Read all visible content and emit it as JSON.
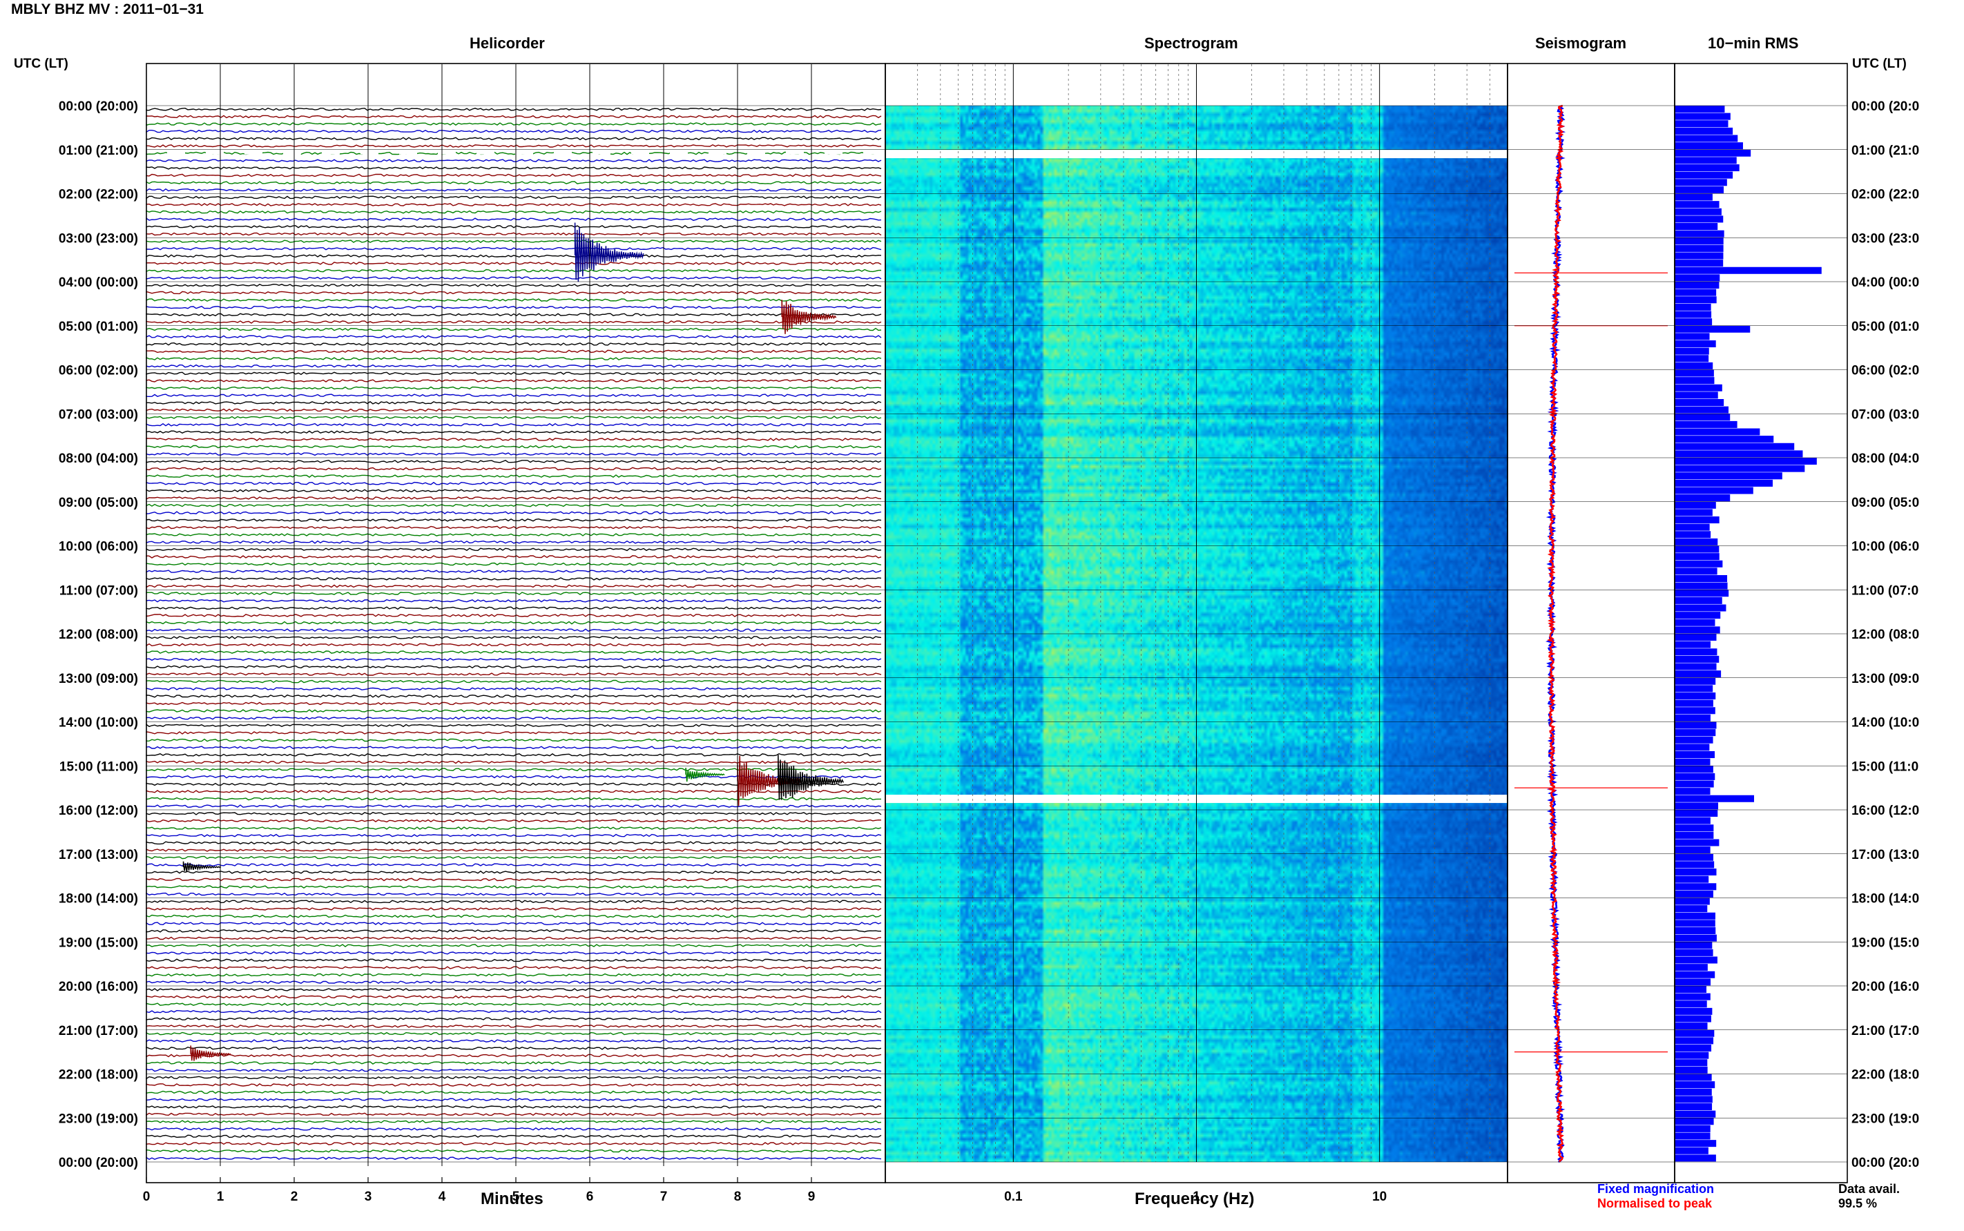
{
  "header": {
    "station_title": "MBLY BHZ MV : 2011−01−31",
    "utc_left": "UTC (LT)",
    "utc_right": "UTC (LT)"
  },
  "panels": {
    "helicorder_title": "Helicorder",
    "spectrogram_title": "Spectrogram",
    "seismogram_title": "Seismogram",
    "rms_title": "10−min RMS"
  },
  "footer": {
    "minutes_label": "Minutes",
    "frequency_label": "Frequency (Hz)",
    "legend_fixed": "Fixed magnification",
    "legend_norm": "Normalised to peak",
    "data_avail_label": "Data avail.",
    "data_avail_value": "99.5 %"
  },
  "colors": {
    "trace_cycle": [
      "#000000",
      "#8b0000",
      "#008000",
      "#0000cc"
    ],
    "seis_fixed": "#0000ff",
    "seis_norm": "#ff0000",
    "rms_bar": "#0000ff",
    "gap": "#ffffff"
  },
  "chart_data": [
    {
      "type": "line",
      "name": "helicorder",
      "title": "Helicorder",
      "xlabel": "Minutes",
      "x_ticks": [
        "0",
        "1",
        "2",
        "3",
        "4",
        "5",
        "6",
        "7",
        "8",
        "9"
      ],
      "xlim": [
        0,
        10
      ],
      "time_labels_left": [
        "00:00 (20:00)",
        "01:00 (21:00)",
        "02:00 (22:00)",
        "03:00 (23:00)",
        "04:00 (00:00)",
        "05:00 (01:00)",
        "06:00 (02:00)",
        "07:00 (03:00)",
        "08:00 (04:00)",
        "09:00 (05:00)",
        "10:00 (06:00)",
        "11:00 (07:00)",
        "12:00 (08:00)",
        "13:00 (09:00)",
        "14:00 (10:00)",
        "15:00 (11:00)",
        "16:00 (12:00)",
        "17:00 (13:00)",
        "18:00 (14:00)",
        "19:00 (15:00)",
        "20:00 (16:00)",
        "21:00 (17:00)",
        "22:00 (18:00)",
        "23:00 (19:00)",
        "00:00 (20:00)"
      ],
      "time_labels_right": [
        "00:00 (20:0",
        "01:00 (21:0",
        "02:00 (22:0",
        "03:00 (23:0",
        "04:00 (00:0",
        "05:00 (01:0",
        "06:00 (02:0",
        "07:00 (03:0",
        "08:00 (04:0",
        "09:00 (05:0",
        "10:00 (06:0",
        "11:00 (07:0",
        "12:00 (08:0",
        "13:00 (09:0",
        "14:00 (10:0",
        "15:00 (11:0",
        "16:00 (12:0",
        "17:00 (13:0",
        "18:00 (14:0",
        "19:00 (15:0",
        "20:00 (16:0",
        "21:00 (17:0",
        "22:00 (18:0",
        "23:00 (19:0",
        "00:00 (20:0"
      ],
      "traces_per_hour": 6,
      "events": [
        {
          "hour": 3.4,
          "minute": 5.8,
          "amp": 3.5,
          "color": "#00008b"
        },
        {
          "hour": 4.8,
          "minute": 8.6,
          "amp": 2.2,
          "color": "#8b0000"
        },
        {
          "hour": 15.2,
          "minute": 7.3,
          "amp": 0.8,
          "color": "#008000"
        },
        {
          "hour": 15.35,
          "minute": 8.0,
          "amp": 3.0,
          "color": "#8b0000"
        },
        {
          "hour": 15.35,
          "minute": 8.55,
          "amp": 3.2,
          "color": "#000000"
        },
        {
          "hour": 21.55,
          "minute": 0.6,
          "amp": 0.9,
          "color": "#8b0000"
        },
        {
          "hour": 17.3,
          "minute": 0.5,
          "amp": 0.7,
          "color": "#000000"
        }
      ],
      "gaps_hours": [
        1.0,
        15.6
      ]
    },
    {
      "type": "heatmap",
      "name": "spectrogram",
      "title": "Spectrogram",
      "xlabel": "Frequency (Hz)",
      "x_scale": "log",
      "xlim": [
        0.02,
        50
      ],
      "x_ticks": [
        "0.1",
        "1",
        "10"
      ],
      "gaps_hours": [
        1.1,
        15.75
      ]
    },
    {
      "type": "line",
      "name": "seismogram",
      "title": "Seismogram",
      "series": [
        {
          "name": "Fixed magnification",
          "color": "#0000ff"
        },
        {
          "name": "Normalised to peak",
          "color": "#ff0000"
        }
      ],
      "spikes_hours": [
        3.8,
        5.0,
        15.5,
        21.5
      ]
    },
    {
      "type": "bar",
      "name": "rms",
      "title": "10−min RMS",
      "orientation": "horizontal",
      "values_per_hour": [
        1.3,
        1.8,
        1.0,
        1.2,
        1.0,
        0.9,
        1.0,
        1.3,
        3.7,
        1.0,
        1.0,
        1.3,
        1.0,
        1.1,
        1.0,
        0.9,
        1.0,
        1.0,
        0.9,
        1.0,
        0.9,
        0.9,
        0.9,
        1.0,
        0.9
      ]
    }
  ]
}
